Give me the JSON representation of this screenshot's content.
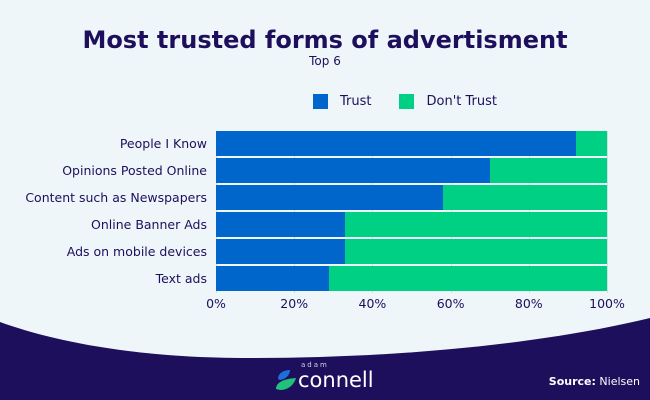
{
  "title": "Most trusted forms of advertisment",
  "subtitle": "Top 6",
  "colors": {
    "trust": "#0066cc",
    "dont_trust": "#00d084",
    "background": "#eef6fa",
    "footer": "#1e0f5c"
  },
  "chart_data": {
    "type": "bar",
    "orientation": "horizontal-stacked-100",
    "title": "Most trusted forms of advertisment",
    "subtitle": "Top 6",
    "categories": [
      "People I Know",
      "Opinions Posted Online",
      "Content such as Newspapers",
      "Online Banner Ads",
      "Ads on mobile devices",
      "Text ads"
    ],
    "series": [
      {
        "name": "Trust",
        "values": [
          92,
          70,
          58,
          33,
          33,
          29
        ]
      },
      {
        "name": "Don't Trust",
        "values": [
          8,
          30,
          42,
          67,
          67,
          71
        ]
      }
    ],
    "xlim": [
      0,
      100
    ],
    "xticks": [
      "0%",
      "20%",
      "40%",
      "60%",
      "80%",
      "100%"
    ],
    "legend": "top",
    "grid": true
  },
  "footer": {
    "logo_small": "adam",
    "logo_main": "connell",
    "source_label": "Source:",
    "source_value": "Nielsen"
  }
}
